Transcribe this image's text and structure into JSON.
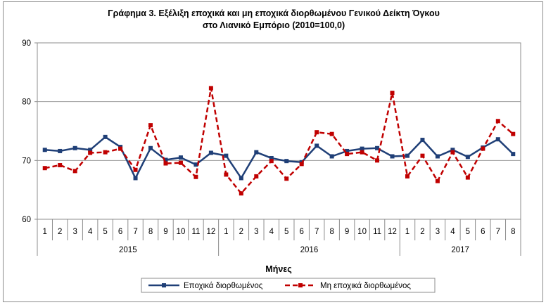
{
  "chart_data": {
    "type": "line",
    "title_lines": [
      "Γράφημα 3. Εξέλιξη εποχικά και μη εποχικά διορθωμένου Γενικού Δείκτη Όγκου",
      "στο Λιανικό Εμπόριο (2010=100,0)"
    ],
    "xlabel": "Μήνες",
    "ylim": [
      60,
      90
    ],
    "yticks": [
      60,
      70,
      80,
      90
    ],
    "grid": true,
    "legend_position": "bottom",
    "categories": [
      "1",
      "2",
      "3",
      "4",
      "5",
      "6",
      "7",
      "8",
      "9",
      "10",
      "11",
      "12",
      "1",
      "2",
      "3",
      "4",
      "5",
      "6",
      "7",
      "8",
      "9",
      "10",
      "11",
      "12",
      "1",
      "2",
      "3",
      "4",
      "5",
      "6",
      "7",
      "8"
    ],
    "years": [
      {
        "label": "2015",
        "months": 12
      },
      {
        "label": "2016",
        "months": 12
      },
      {
        "label": "2017",
        "months": 8
      }
    ],
    "series": [
      {
        "name": "Εποχικά διορθωμένος",
        "color": "#1f3f77",
        "style": "solid",
        "values": [
          71.8,
          71.6,
          72.1,
          71.8,
          74.0,
          72.3,
          67.0,
          72.1,
          70.1,
          70.5,
          69.3,
          71.3,
          70.8,
          67.0,
          71.4,
          70.4,
          69.9,
          69.7,
          72.5,
          70.7,
          71.6,
          72.0,
          72.1,
          70.7,
          70.8,
          73.5,
          70.7,
          71.8,
          70.6,
          72.2,
          73.6,
          71.1
        ]
      },
      {
        "name": "Μη εποχικά διορθωμένος",
        "color": "#c00000",
        "style": "dashed",
        "values": [
          68.7,
          69.2,
          68.2,
          71.3,
          71.4,
          72.0,
          68.4,
          76.0,
          69.5,
          69.6,
          67.2,
          82.3,
          67.6,
          64.4,
          67.3,
          69.9,
          66.9,
          69.4,
          74.8,
          74.5,
          71.1,
          71.4,
          70.0,
          81.5,
          67.3,
          70.8,
          66.5,
          71.4,
          67.1,
          72.0,
          76.7,
          74.5
        ]
      }
    ]
  }
}
